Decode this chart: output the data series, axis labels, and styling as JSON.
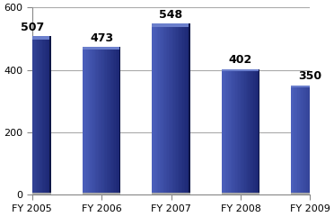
{
  "categories": [
    "FY 2005",
    "FY 2006",
    "FY 2007",
    "FY 2008",
    "FY 2009"
  ],
  "values": [
    507,
    473,
    548,
    402,
    350
  ],
  "bar_color_left": "#4B5FBB",
  "bar_color_right": "#1A2570",
  "bar_color_mid": "#3347A8",
  "background_color": "#FFFFFF",
  "plot_bg_color": "#FFFFFF",
  "ylim": [
    0,
    600
  ],
  "yticks": [
    0,
    200,
    400,
    600
  ],
  "grid_color": "#AAAAAA",
  "label_fontsize": 8,
  "value_fontsize": 9,
  "value_color": "#000000",
  "bar_width": 0.55,
  "figsize": [
    3.72,
    2.41
  ],
  "dpi": 100
}
